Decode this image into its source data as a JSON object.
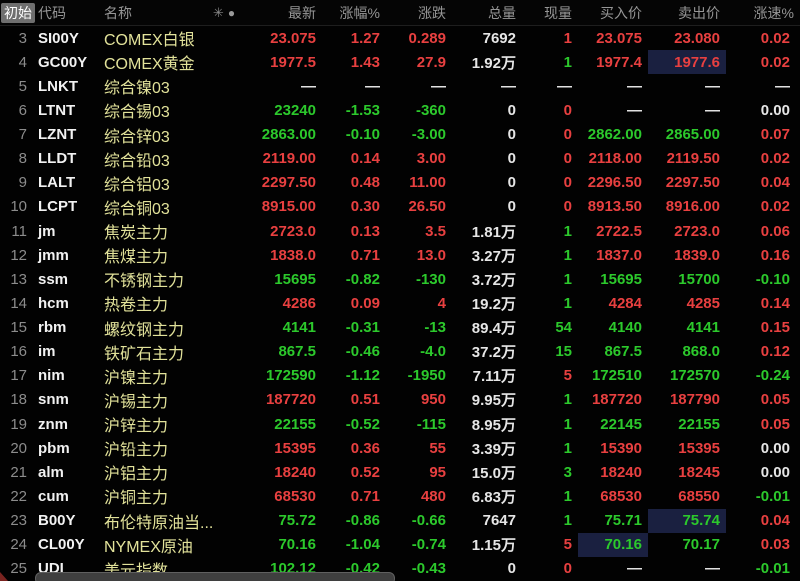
{
  "header": {
    "initial_label": "初始",
    "columns": {
      "code": "代码",
      "name": "名称",
      "latest": "最新",
      "pct": "涨幅%",
      "chg": "涨跌",
      "vol": "总量",
      "cur": "现量",
      "bid": "买入价",
      "ask": "卖出价",
      "speed": "涨速%"
    },
    "sort_icons": {
      "asterisk": "✳",
      "dot": "●"
    }
  },
  "colors": {
    "up_red": "#e84040",
    "down_green": "#2cc92c",
    "neutral_white": "#e6e6e6",
    "name_yellow": "#e2e29a",
    "highlight_navy": "#1a2040",
    "chip_gray": "#6f6f6f"
  },
  "rows": [
    {
      "num": "3",
      "code": "SI00Y",
      "name": "COMEX白银",
      "cells": [
        {
          "v": "23.075",
          "c": "r"
        },
        {
          "v": "1.27",
          "c": "r"
        },
        {
          "v": "0.289",
          "c": "r"
        },
        {
          "v": "7692",
          "c": "w"
        },
        {
          "v": "1",
          "c": "r"
        },
        {
          "v": "23.075",
          "c": "r"
        },
        {
          "v": "23.080",
          "c": "r"
        },
        {
          "v": "0.02",
          "c": "r"
        }
      ]
    },
    {
      "num": "4",
      "code": "GC00Y",
      "name": "COMEX黄金",
      "cells": [
        {
          "v": "1977.5",
          "c": "r"
        },
        {
          "v": "1.43",
          "c": "r"
        },
        {
          "v": "27.9",
          "c": "r"
        },
        {
          "v": "1.92万",
          "c": "w"
        },
        {
          "v": "1",
          "c": "g"
        },
        {
          "v": "1977.4",
          "c": "r"
        },
        {
          "v": "1977.6",
          "c": "r",
          "h": true
        },
        {
          "v": "0.02",
          "c": "r"
        }
      ]
    },
    {
      "num": "5",
      "code": "LNKT",
      "name": "综合镍03",
      "cells": [
        {
          "v": "—",
          "c": "w"
        },
        {
          "v": "—",
          "c": "w"
        },
        {
          "v": "—",
          "c": "w"
        },
        {
          "v": "—",
          "c": "w"
        },
        {
          "v": "—",
          "c": "w"
        },
        {
          "v": "—",
          "c": "w"
        },
        {
          "v": "—",
          "c": "w"
        },
        {
          "v": "—",
          "c": "w"
        }
      ]
    },
    {
      "num": "6",
      "code": "LTNT",
      "name": "综合锡03",
      "cells": [
        {
          "v": "23240",
          "c": "g"
        },
        {
          "v": "-1.53",
          "c": "g"
        },
        {
          "v": "-360",
          "c": "g"
        },
        {
          "v": "0",
          "c": "w"
        },
        {
          "v": "0",
          "c": "r"
        },
        {
          "v": "—",
          "c": "w"
        },
        {
          "v": "—",
          "c": "w"
        },
        {
          "v": "0.00",
          "c": "w"
        }
      ]
    },
    {
      "num": "7",
      "code": "LZNT",
      "name": "综合锌03",
      "cells": [
        {
          "v": "2863.00",
          "c": "g"
        },
        {
          "v": "-0.10",
          "c": "g"
        },
        {
          "v": "-3.00",
          "c": "g"
        },
        {
          "v": "0",
          "c": "w"
        },
        {
          "v": "0",
          "c": "r"
        },
        {
          "v": "2862.00",
          "c": "g"
        },
        {
          "v": "2865.00",
          "c": "g"
        },
        {
          "v": "0.07",
          "c": "r"
        }
      ]
    },
    {
      "num": "8",
      "code": "LLDT",
      "name": "综合铅03",
      "cells": [
        {
          "v": "2119.00",
          "c": "r"
        },
        {
          "v": "0.14",
          "c": "r"
        },
        {
          "v": "3.00",
          "c": "r"
        },
        {
          "v": "0",
          "c": "w"
        },
        {
          "v": "0",
          "c": "r"
        },
        {
          "v": "2118.00",
          "c": "r"
        },
        {
          "v": "2119.50",
          "c": "r"
        },
        {
          "v": "0.02",
          "c": "r"
        }
      ]
    },
    {
      "num": "9",
      "code": "LALT",
      "name": "综合铝03",
      "cells": [
        {
          "v": "2297.50",
          "c": "r"
        },
        {
          "v": "0.48",
          "c": "r"
        },
        {
          "v": "11.00",
          "c": "r"
        },
        {
          "v": "0",
          "c": "w"
        },
        {
          "v": "0",
          "c": "r"
        },
        {
          "v": "2296.50",
          "c": "r"
        },
        {
          "v": "2297.50",
          "c": "r"
        },
        {
          "v": "0.04",
          "c": "r"
        }
      ]
    },
    {
      "num": "10",
      "code": "LCPT",
      "name": "综合铜03",
      "cells": [
        {
          "v": "8915.00",
          "c": "r"
        },
        {
          "v": "0.30",
          "c": "r"
        },
        {
          "v": "26.50",
          "c": "r"
        },
        {
          "v": "0",
          "c": "w"
        },
        {
          "v": "0",
          "c": "r"
        },
        {
          "v": "8913.50",
          "c": "r"
        },
        {
          "v": "8916.00",
          "c": "r"
        },
        {
          "v": "0.02",
          "c": "r"
        }
      ]
    },
    {
      "num": "11",
      "code": "jm",
      "name": "焦炭主力",
      "cells": [
        {
          "v": "2723.0",
          "c": "r"
        },
        {
          "v": "0.13",
          "c": "r"
        },
        {
          "v": "3.5",
          "c": "r"
        },
        {
          "v": "1.81万",
          "c": "w"
        },
        {
          "v": "1",
          "c": "g"
        },
        {
          "v": "2722.5",
          "c": "r"
        },
        {
          "v": "2723.0",
          "c": "r"
        },
        {
          "v": "0.06",
          "c": "r"
        }
      ]
    },
    {
      "num": "12",
      "code": "jmm",
      "name": "焦煤主力",
      "cells": [
        {
          "v": "1838.0",
          "c": "r"
        },
        {
          "v": "0.71",
          "c": "r"
        },
        {
          "v": "13.0",
          "c": "r"
        },
        {
          "v": "3.27万",
          "c": "w"
        },
        {
          "v": "1",
          "c": "g"
        },
        {
          "v": "1837.0",
          "c": "r"
        },
        {
          "v": "1839.0",
          "c": "r"
        },
        {
          "v": "0.16",
          "c": "r"
        }
      ]
    },
    {
      "num": "13",
      "code": "ssm",
      "name": "不锈钢主力",
      "cells": [
        {
          "v": "15695",
          "c": "g"
        },
        {
          "v": "-0.82",
          "c": "g"
        },
        {
          "v": "-130",
          "c": "g"
        },
        {
          "v": "3.72万",
          "c": "w"
        },
        {
          "v": "1",
          "c": "g"
        },
        {
          "v": "15695",
          "c": "g"
        },
        {
          "v": "15700",
          "c": "g"
        },
        {
          "v": "-0.10",
          "c": "g"
        }
      ]
    },
    {
      "num": "14",
      "code": "hcm",
      "name": "热卷主力",
      "cells": [
        {
          "v": "4286",
          "c": "r"
        },
        {
          "v": "0.09",
          "c": "r"
        },
        {
          "v": "4",
          "c": "r"
        },
        {
          "v": "19.2万",
          "c": "w"
        },
        {
          "v": "1",
          "c": "g"
        },
        {
          "v": "4284",
          "c": "r"
        },
        {
          "v": "4285",
          "c": "r"
        },
        {
          "v": "0.14",
          "c": "r"
        }
      ]
    },
    {
      "num": "15",
      "code": "rbm",
      "name": "螺纹钢主力",
      "cells": [
        {
          "v": "4141",
          "c": "g"
        },
        {
          "v": "-0.31",
          "c": "g"
        },
        {
          "v": "-13",
          "c": "g"
        },
        {
          "v": "89.4万",
          "c": "w"
        },
        {
          "v": "54",
          "c": "g"
        },
        {
          "v": "4140",
          "c": "g"
        },
        {
          "v": "4141",
          "c": "g"
        },
        {
          "v": "0.15",
          "c": "r"
        }
      ]
    },
    {
      "num": "16",
      "code": "im",
      "name": "铁矿石主力",
      "cells": [
        {
          "v": "867.5",
          "c": "g"
        },
        {
          "v": "-0.46",
          "c": "g"
        },
        {
          "v": "-4.0",
          "c": "g"
        },
        {
          "v": "37.2万",
          "c": "w"
        },
        {
          "v": "15",
          "c": "g"
        },
        {
          "v": "867.5",
          "c": "g"
        },
        {
          "v": "868.0",
          "c": "g"
        },
        {
          "v": "0.12",
          "c": "r"
        }
      ]
    },
    {
      "num": "17",
      "code": "nim",
      "name": "沪镍主力",
      "cells": [
        {
          "v": "172590",
          "c": "g"
        },
        {
          "v": "-1.12",
          "c": "g"
        },
        {
          "v": "-1950",
          "c": "g"
        },
        {
          "v": "7.11万",
          "c": "w"
        },
        {
          "v": "5",
          "c": "r"
        },
        {
          "v": "172510",
          "c": "g"
        },
        {
          "v": "172570",
          "c": "g"
        },
        {
          "v": "-0.24",
          "c": "g"
        }
      ]
    },
    {
      "num": "18",
      "code": "snm",
      "name": "沪锡主力",
      "cells": [
        {
          "v": "187720",
          "c": "r"
        },
        {
          "v": "0.51",
          "c": "r"
        },
        {
          "v": "950",
          "c": "r"
        },
        {
          "v": "9.95万",
          "c": "w"
        },
        {
          "v": "1",
          "c": "g"
        },
        {
          "v": "187720",
          "c": "r"
        },
        {
          "v": "187790",
          "c": "r"
        },
        {
          "v": "0.05",
          "c": "r"
        }
      ]
    },
    {
      "num": "19",
      "code": "znm",
      "name": "沪锌主力",
      "cells": [
        {
          "v": "22155",
          "c": "g"
        },
        {
          "v": "-0.52",
          "c": "g"
        },
        {
          "v": "-115",
          "c": "g"
        },
        {
          "v": "8.95万",
          "c": "w"
        },
        {
          "v": "1",
          "c": "g"
        },
        {
          "v": "22145",
          "c": "g"
        },
        {
          "v": "22155",
          "c": "g"
        },
        {
          "v": "0.05",
          "c": "r"
        }
      ]
    },
    {
      "num": "20",
      "code": "pbm",
      "name": "沪铅主力",
      "cells": [
        {
          "v": "15395",
          "c": "r"
        },
        {
          "v": "0.36",
          "c": "r"
        },
        {
          "v": "55",
          "c": "r"
        },
        {
          "v": "3.39万",
          "c": "w"
        },
        {
          "v": "1",
          "c": "g"
        },
        {
          "v": "15390",
          "c": "r"
        },
        {
          "v": "15395",
          "c": "r"
        },
        {
          "v": "0.00",
          "c": "w"
        }
      ]
    },
    {
      "num": "21",
      "code": "alm",
      "name": "沪铝主力",
      "cells": [
        {
          "v": "18240",
          "c": "r"
        },
        {
          "v": "0.52",
          "c": "r"
        },
        {
          "v": "95",
          "c": "r"
        },
        {
          "v": "15.0万",
          "c": "w"
        },
        {
          "v": "3",
          "c": "g"
        },
        {
          "v": "18240",
          "c": "r"
        },
        {
          "v": "18245",
          "c": "r"
        },
        {
          "v": "0.00",
          "c": "w"
        }
      ]
    },
    {
      "num": "22",
      "code": "cum",
      "name": "沪铜主力",
      "cells": [
        {
          "v": "68530",
          "c": "r"
        },
        {
          "v": "0.71",
          "c": "r"
        },
        {
          "v": "480",
          "c": "r"
        },
        {
          "v": "6.83万",
          "c": "w"
        },
        {
          "v": "1",
          "c": "g"
        },
        {
          "v": "68530",
          "c": "r"
        },
        {
          "v": "68550",
          "c": "r"
        },
        {
          "v": "-0.01",
          "c": "g"
        }
      ]
    },
    {
      "num": "23",
      "code": "B00Y",
      "name": "布伦特原油当...",
      "cells": [
        {
          "v": "75.72",
          "c": "g"
        },
        {
          "v": "-0.86",
          "c": "g"
        },
        {
          "v": "-0.66",
          "c": "g"
        },
        {
          "v": "7647",
          "c": "w"
        },
        {
          "v": "1",
          "c": "g"
        },
        {
          "v": "75.71",
          "c": "g"
        },
        {
          "v": "75.74",
          "c": "g",
          "h": true
        },
        {
          "v": "0.04",
          "c": "r"
        }
      ]
    },
    {
      "num": "24",
      "code": "CL00Y",
      "name": "NYMEX原油",
      "cells": [
        {
          "v": "70.16",
          "c": "g"
        },
        {
          "v": "-1.04",
          "c": "g"
        },
        {
          "v": "-0.74",
          "c": "g"
        },
        {
          "v": "1.15万",
          "c": "w"
        },
        {
          "v": "5",
          "c": "r"
        },
        {
          "v": "70.16",
          "c": "g",
          "h": true
        },
        {
          "v": "70.17",
          "c": "g"
        },
        {
          "v": "0.03",
          "c": "r"
        }
      ]
    },
    {
      "num": "25",
      "code": "UDI",
      "name": "美元指数",
      "cells": [
        {
          "v": "102.12",
          "c": "g"
        },
        {
          "v": "-0.42",
          "c": "g"
        },
        {
          "v": "-0.43",
          "c": "g"
        },
        {
          "v": "0",
          "c": "w"
        },
        {
          "v": "0",
          "c": "r"
        },
        {
          "v": "—",
          "c": "w"
        },
        {
          "v": "—",
          "c": "w"
        },
        {
          "v": "-0.01",
          "c": "g"
        }
      ]
    }
  ]
}
